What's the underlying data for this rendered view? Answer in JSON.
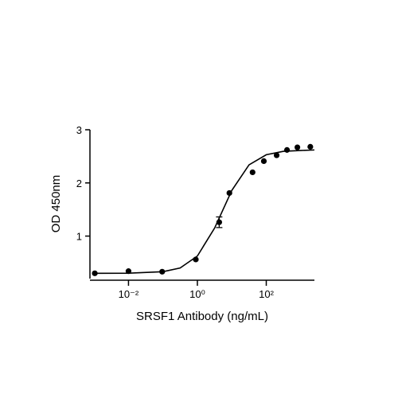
{
  "chart_data": {
    "type": "scatter",
    "xlabel": "SRSF1 Antibody (ng/mL)",
    "ylabel": "OD 450nm",
    "xscale": "log",
    "xlim": [
      0.00076,
      2500
    ],
    "ylim": [
      0.2,
      3
    ],
    "xticks": [
      {
        "value": 0.01,
        "label": "10⁻²"
      },
      {
        "value": 1,
        "label": "10⁰"
      },
      {
        "value": 100,
        "label": "10²"
      }
    ],
    "yticks": [
      1,
      2,
      3
    ],
    "series": [
      {
        "kind": "points",
        "color": "#000000",
        "x": [
          0.00105,
          0.01,
          0.095,
          0.9,
          4.3,
          8.5,
          40,
          85,
          200,
          400,
          800,
          1900
        ],
        "values": [
          0.3,
          0.34,
          0.33,
          0.56,
          1.26,
          1.81,
          2.2,
          2.41,
          2.52,
          2.62,
          2.67,
          2.68
        ],
        "errors": [
          0,
          0,
          0,
          0,
          0.1,
          0,
          0,
          0,
          0,
          0,
          0,
          0
        ]
      },
      {
        "kind": "line",
        "color": "#000000",
        "x": [
          0.001,
          0.01,
          0.1,
          0.316,
          1,
          3.16,
          10,
          31.6,
          100,
          316,
          1000,
          2500
        ],
        "values": [
          0.3,
          0.302,
          0.33,
          0.4,
          0.625,
          1.15,
          1.86,
          2.34,
          2.53,
          2.595,
          2.61,
          2.62
        ]
      }
    ]
  }
}
